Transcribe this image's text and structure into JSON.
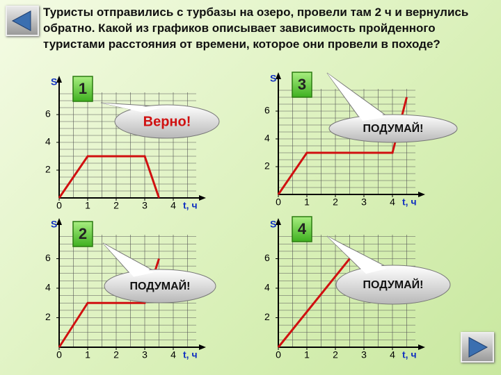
{
  "question": "Туристы отправились с турбазы на озеро, провели там 2 ч и вернулись обратно. Какой из графиков описывает зависимость пройденного туристами расстояния от времени, которое они провели в походе?",
  "chart_data": [
    {
      "type": "line",
      "title": "1",
      "annotation": "Верно!",
      "x_label": "t, ч",
      "y_label": "S",
      "xlim": [
        0,
        5
      ],
      "ylim": [
        0,
        8
      ],
      "xticks": [
        0,
        1,
        2,
        3,
        4
      ],
      "yticks": [
        2,
        4,
        6
      ],
      "x": [
        0,
        1,
        3,
        3.5
      ],
      "values": [
        0,
        3,
        3,
        0
      ],
      "color": "#d01010"
    },
    {
      "type": "line",
      "title": "2",
      "annotation": "ПОДУМАЙ!",
      "x_label": "t, ч",
      "y_label": "S",
      "xlim": [
        0,
        5
      ],
      "ylim": [
        0,
        8
      ],
      "xticks": [
        0,
        1,
        2,
        3,
        4
      ],
      "yticks": [
        2,
        4,
        6
      ],
      "x": [
        0,
        1,
        3,
        3.5
      ],
      "values": [
        0,
        3,
        3,
        6
      ],
      "color": "#d01010"
    },
    {
      "type": "line",
      "title": "3",
      "annotation": "ПОДУМАЙ!",
      "x_label": "t, ч",
      "y_label": "S",
      "xlim": [
        0,
        5
      ],
      "ylim": [
        0,
        8
      ],
      "xticks": [
        0,
        1,
        2,
        3,
        4
      ],
      "yticks": [
        2,
        4,
        6
      ],
      "x": [
        0,
        1,
        4,
        4.5
      ],
      "values": [
        0,
        3,
        3,
        7
      ],
      "color": "#d01010"
    },
    {
      "type": "line",
      "title": "4",
      "annotation": "ПОДУМАЙ!",
      "x_label": "t, ч",
      "y_label": "S",
      "xlim": [
        0,
        5
      ],
      "ylim": [
        0,
        8
      ],
      "xticks": [
        0,
        1,
        2,
        3,
        4
      ],
      "yticks": [
        2,
        4,
        6
      ],
      "x": [
        0,
        2.5
      ],
      "values": [
        0,
        6
      ],
      "color": "#d01010"
    }
  ]
}
